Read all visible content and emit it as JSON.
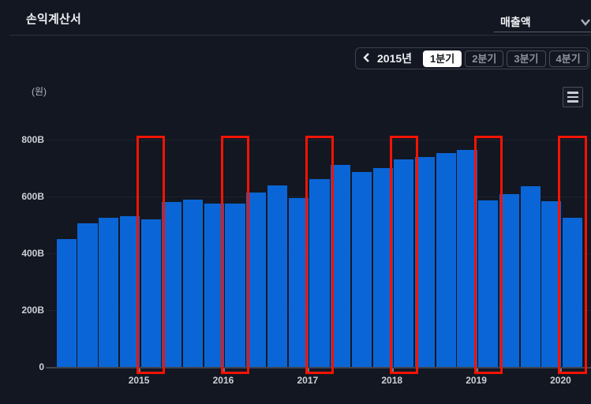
{
  "header": {
    "title": "손익계산서",
    "metric_select": {
      "value": "매출액"
    }
  },
  "period_selector": {
    "year": "2015년",
    "quarters": [
      {
        "label": "1분기",
        "selected": true
      },
      {
        "label": "2분기",
        "selected": false
      },
      {
        "label": "3분기",
        "selected": false
      },
      {
        "label": "4분기",
        "selected": false
      }
    ]
  },
  "chart": {
    "unit_label": "(원)",
    "colors": {
      "bar": "#0a66d6",
      "highlight_box": "#f51303",
      "background": "#131722"
    }
  },
  "chart_data": {
    "type": "bar",
    "title": "손익계산서 - 매출액 (분기별)",
    "ylabel": "(원)",
    "ylim": [
      0,
      820
    ],
    "grid": true,
    "yticks": [
      {
        "value": 0,
        "label": "0"
      },
      {
        "value": 200,
        "label": "200B"
      },
      {
        "value": 400,
        "label": "400B"
      },
      {
        "value": 600,
        "label": "600B"
      },
      {
        "value": 800,
        "label": "800B"
      }
    ],
    "x_year_labels": [
      "2015",
      "2016",
      "2017",
      "2018",
      "2019",
      "2020"
    ],
    "highlight_note": "red annotation boxes mark the Q1 (1분기) bar of each labeled year",
    "quarters": [
      {
        "period": "2014 Q1",
        "value": 450,
        "highlighted": false
      },
      {
        "period": "2014 Q2",
        "value": 505,
        "highlighted": false
      },
      {
        "period": "2014 Q3",
        "value": 525,
        "highlighted": false
      },
      {
        "period": "2014 Q4",
        "value": 530,
        "highlighted": false
      },
      {
        "period": "2015 Q1",
        "value": 520,
        "highlighted": true
      },
      {
        "period": "2015 Q2",
        "value": 580,
        "highlighted": false
      },
      {
        "period": "2015 Q3",
        "value": 590,
        "highlighted": false
      },
      {
        "period": "2015 Q4",
        "value": 575,
        "highlighted": false
      },
      {
        "period": "2016 Q1",
        "value": 575,
        "highlighted": true
      },
      {
        "period": "2016 Q2",
        "value": 615,
        "highlighted": false
      },
      {
        "period": "2016 Q3",
        "value": 640,
        "highlighted": false
      },
      {
        "period": "2016 Q4",
        "value": 595,
        "highlighted": false
      },
      {
        "period": "2017 Q1",
        "value": 660,
        "highlighted": true
      },
      {
        "period": "2017 Q2",
        "value": 712,
        "highlighted": false
      },
      {
        "period": "2017 Q3",
        "value": 686,
        "highlighted": false
      },
      {
        "period": "2017 Q4",
        "value": 700,
        "highlighted": false
      },
      {
        "period": "2018 Q1",
        "value": 730,
        "highlighted": true
      },
      {
        "period": "2018 Q2",
        "value": 740,
        "highlighted": false
      },
      {
        "period": "2018 Q3",
        "value": 752,
        "highlighted": false
      },
      {
        "period": "2018 Q4",
        "value": 764,
        "highlighted": false
      },
      {
        "period": "2019 Q1",
        "value": 585,
        "highlighted": true
      },
      {
        "period": "2019 Q2",
        "value": 608,
        "highlighted": false
      },
      {
        "period": "2019 Q3",
        "value": 635,
        "highlighted": false
      },
      {
        "period": "2019 Q4",
        "value": 584,
        "highlighted": false
      },
      {
        "period": "2020 Q1",
        "value": 525,
        "highlighted": true
      }
    ]
  }
}
